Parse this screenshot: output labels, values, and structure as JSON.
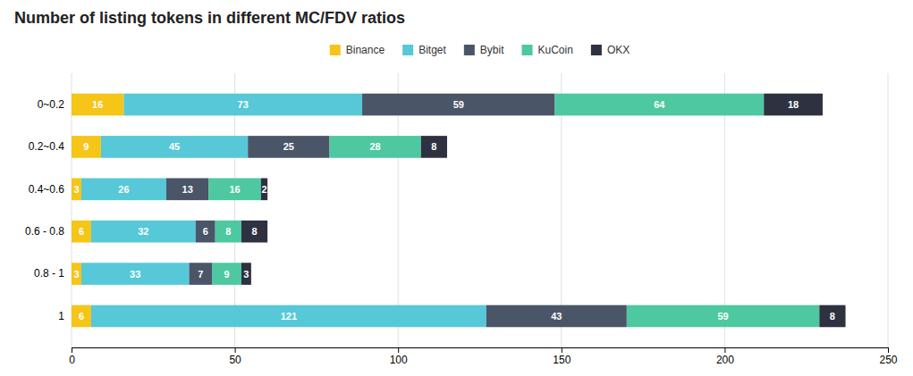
{
  "chart_data": {
    "type": "bar",
    "orientation": "horizontal",
    "stacked": true,
    "title": "Number of listing tokens in different MC/FDV ratios",
    "categories": [
      "0~0.2",
      "0.2~0.4",
      "0.4~0.6",
      "0.6 - 0.8",
      "0.8 - 1",
      "1"
    ],
    "series": [
      {
        "name": "Binance",
        "color": "#F5C518",
        "values": [
          16,
          9,
          3,
          6,
          3,
          6
        ]
      },
      {
        "name": "Bitget",
        "color": "#56C8D8",
        "values": [
          73,
          45,
          26,
          32,
          33,
          121
        ]
      },
      {
        "name": "Bybit",
        "color": "#4A5568",
        "values": [
          59,
          25,
          13,
          6,
          7,
          43
        ]
      },
      {
        "name": "KuCoin",
        "color": "#4DC8A0",
        "values": [
          64,
          28,
          16,
          8,
          9,
          59
        ]
      },
      {
        "name": "OKX",
        "color": "#2D3140",
        "values": [
          18,
          8,
          2,
          8,
          3,
          8
        ]
      }
    ],
    "xlim": [
      0,
      250
    ],
    "xticks": [
      0,
      50,
      100,
      150,
      200,
      250
    ],
    "grid": true,
    "legend": "top",
    "data_labels": true
  }
}
